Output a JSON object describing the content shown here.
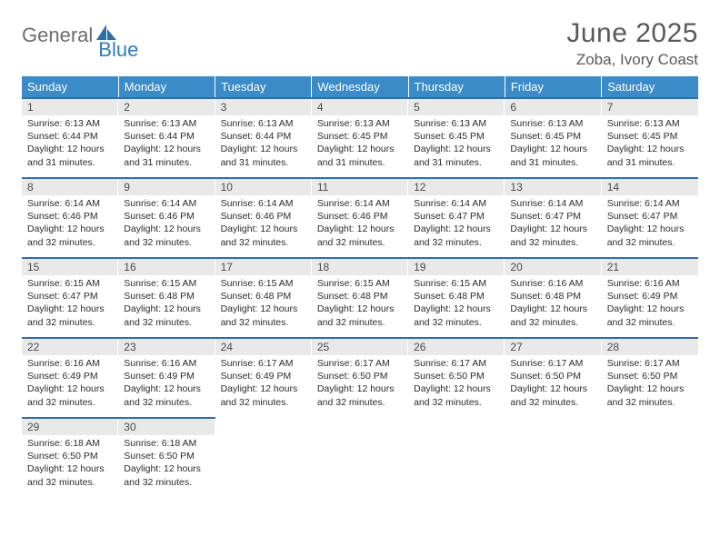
{
  "logo": {
    "textGeneral": "General",
    "textBlue": "Blue"
  },
  "title": "June 2025",
  "location": "Zoba, Ivory Coast",
  "colors": {
    "headerBg": "#3b8bc9",
    "headerText": "#ffffff",
    "dayBarBg": "#e9e9e9",
    "rowBorder": "#2f6fa8",
    "bodyText": "#2b2b2b",
    "titleText": "#58595b",
    "logoGray": "#6d6d6d",
    "logoBlue": "#2f7bbf"
  },
  "dayHeaders": [
    "Sunday",
    "Monday",
    "Tuesday",
    "Wednesday",
    "Thursday",
    "Friday",
    "Saturday"
  ],
  "weeks": [
    [
      {
        "num": "1",
        "sunrise": "Sunrise: 6:13 AM",
        "sunset": "Sunset: 6:44 PM",
        "daylight": "Daylight: 12 hours and 31 minutes."
      },
      {
        "num": "2",
        "sunrise": "Sunrise: 6:13 AM",
        "sunset": "Sunset: 6:44 PM",
        "daylight": "Daylight: 12 hours and 31 minutes."
      },
      {
        "num": "3",
        "sunrise": "Sunrise: 6:13 AM",
        "sunset": "Sunset: 6:44 PM",
        "daylight": "Daylight: 12 hours and 31 minutes."
      },
      {
        "num": "4",
        "sunrise": "Sunrise: 6:13 AM",
        "sunset": "Sunset: 6:45 PM",
        "daylight": "Daylight: 12 hours and 31 minutes."
      },
      {
        "num": "5",
        "sunrise": "Sunrise: 6:13 AM",
        "sunset": "Sunset: 6:45 PM",
        "daylight": "Daylight: 12 hours and 31 minutes."
      },
      {
        "num": "6",
        "sunrise": "Sunrise: 6:13 AM",
        "sunset": "Sunset: 6:45 PM",
        "daylight": "Daylight: 12 hours and 31 minutes."
      },
      {
        "num": "7",
        "sunrise": "Sunrise: 6:13 AM",
        "sunset": "Sunset: 6:45 PM",
        "daylight": "Daylight: 12 hours and 31 minutes."
      }
    ],
    [
      {
        "num": "8",
        "sunrise": "Sunrise: 6:14 AM",
        "sunset": "Sunset: 6:46 PM",
        "daylight": "Daylight: 12 hours and 32 minutes."
      },
      {
        "num": "9",
        "sunrise": "Sunrise: 6:14 AM",
        "sunset": "Sunset: 6:46 PM",
        "daylight": "Daylight: 12 hours and 32 minutes."
      },
      {
        "num": "10",
        "sunrise": "Sunrise: 6:14 AM",
        "sunset": "Sunset: 6:46 PM",
        "daylight": "Daylight: 12 hours and 32 minutes."
      },
      {
        "num": "11",
        "sunrise": "Sunrise: 6:14 AM",
        "sunset": "Sunset: 6:46 PM",
        "daylight": "Daylight: 12 hours and 32 minutes."
      },
      {
        "num": "12",
        "sunrise": "Sunrise: 6:14 AM",
        "sunset": "Sunset: 6:47 PM",
        "daylight": "Daylight: 12 hours and 32 minutes."
      },
      {
        "num": "13",
        "sunrise": "Sunrise: 6:14 AM",
        "sunset": "Sunset: 6:47 PM",
        "daylight": "Daylight: 12 hours and 32 minutes."
      },
      {
        "num": "14",
        "sunrise": "Sunrise: 6:14 AM",
        "sunset": "Sunset: 6:47 PM",
        "daylight": "Daylight: 12 hours and 32 minutes."
      }
    ],
    [
      {
        "num": "15",
        "sunrise": "Sunrise: 6:15 AM",
        "sunset": "Sunset: 6:47 PM",
        "daylight": "Daylight: 12 hours and 32 minutes."
      },
      {
        "num": "16",
        "sunrise": "Sunrise: 6:15 AM",
        "sunset": "Sunset: 6:48 PM",
        "daylight": "Daylight: 12 hours and 32 minutes."
      },
      {
        "num": "17",
        "sunrise": "Sunrise: 6:15 AM",
        "sunset": "Sunset: 6:48 PM",
        "daylight": "Daylight: 12 hours and 32 minutes."
      },
      {
        "num": "18",
        "sunrise": "Sunrise: 6:15 AM",
        "sunset": "Sunset: 6:48 PM",
        "daylight": "Daylight: 12 hours and 32 minutes."
      },
      {
        "num": "19",
        "sunrise": "Sunrise: 6:15 AM",
        "sunset": "Sunset: 6:48 PM",
        "daylight": "Daylight: 12 hours and 32 minutes."
      },
      {
        "num": "20",
        "sunrise": "Sunrise: 6:16 AM",
        "sunset": "Sunset: 6:48 PM",
        "daylight": "Daylight: 12 hours and 32 minutes."
      },
      {
        "num": "21",
        "sunrise": "Sunrise: 6:16 AM",
        "sunset": "Sunset: 6:49 PM",
        "daylight": "Daylight: 12 hours and 32 minutes."
      }
    ],
    [
      {
        "num": "22",
        "sunrise": "Sunrise: 6:16 AM",
        "sunset": "Sunset: 6:49 PM",
        "daylight": "Daylight: 12 hours and 32 minutes."
      },
      {
        "num": "23",
        "sunrise": "Sunrise: 6:16 AM",
        "sunset": "Sunset: 6:49 PM",
        "daylight": "Daylight: 12 hours and 32 minutes."
      },
      {
        "num": "24",
        "sunrise": "Sunrise: 6:17 AM",
        "sunset": "Sunset: 6:49 PM",
        "daylight": "Daylight: 12 hours and 32 minutes."
      },
      {
        "num": "25",
        "sunrise": "Sunrise: 6:17 AM",
        "sunset": "Sunset: 6:50 PM",
        "daylight": "Daylight: 12 hours and 32 minutes."
      },
      {
        "num": "26",
        "sunrise": "Sunrise: 6:17 AM",
        "sunset": "Sunset: 6:50 PM",
        "daylight": "Daylight: 12 hours and 32 minutes."
      },
      {
        "num": "27",
        "sunrise": "Sunrise: 6:17 AM",
        "sunset": "Sunset: 6:50 PM",
        "daylight": "Daylight: 12 hours and 32 minutes."
      },
      {
        "num": "28",
        "sunrise": "Sunrise: 6:17 AM",
        "sunset": "Sunset: 6:50 PM",
        "daylight": "Daylight: 12 hours and 32 minutes."
      }
    ],
    [
      {
        "num": "29",
        "sunrise": "Sunrise: 6:18 AM",
        "sunset": "Sunset: 6:50 PM",
        "daylight": "Daylight: 12 hours and 32 minutes."
      },
      {
        "num": "30",
        "sunrise": "Sunrise: 6:18 AM",
        "sunset": "Sunset: 6:50 PM",
        "daylight": "Daylight: 12 hours and 32 minutes."
      },
      null,
      null,
      null,
      null,
      null
    ]
  ]
}
